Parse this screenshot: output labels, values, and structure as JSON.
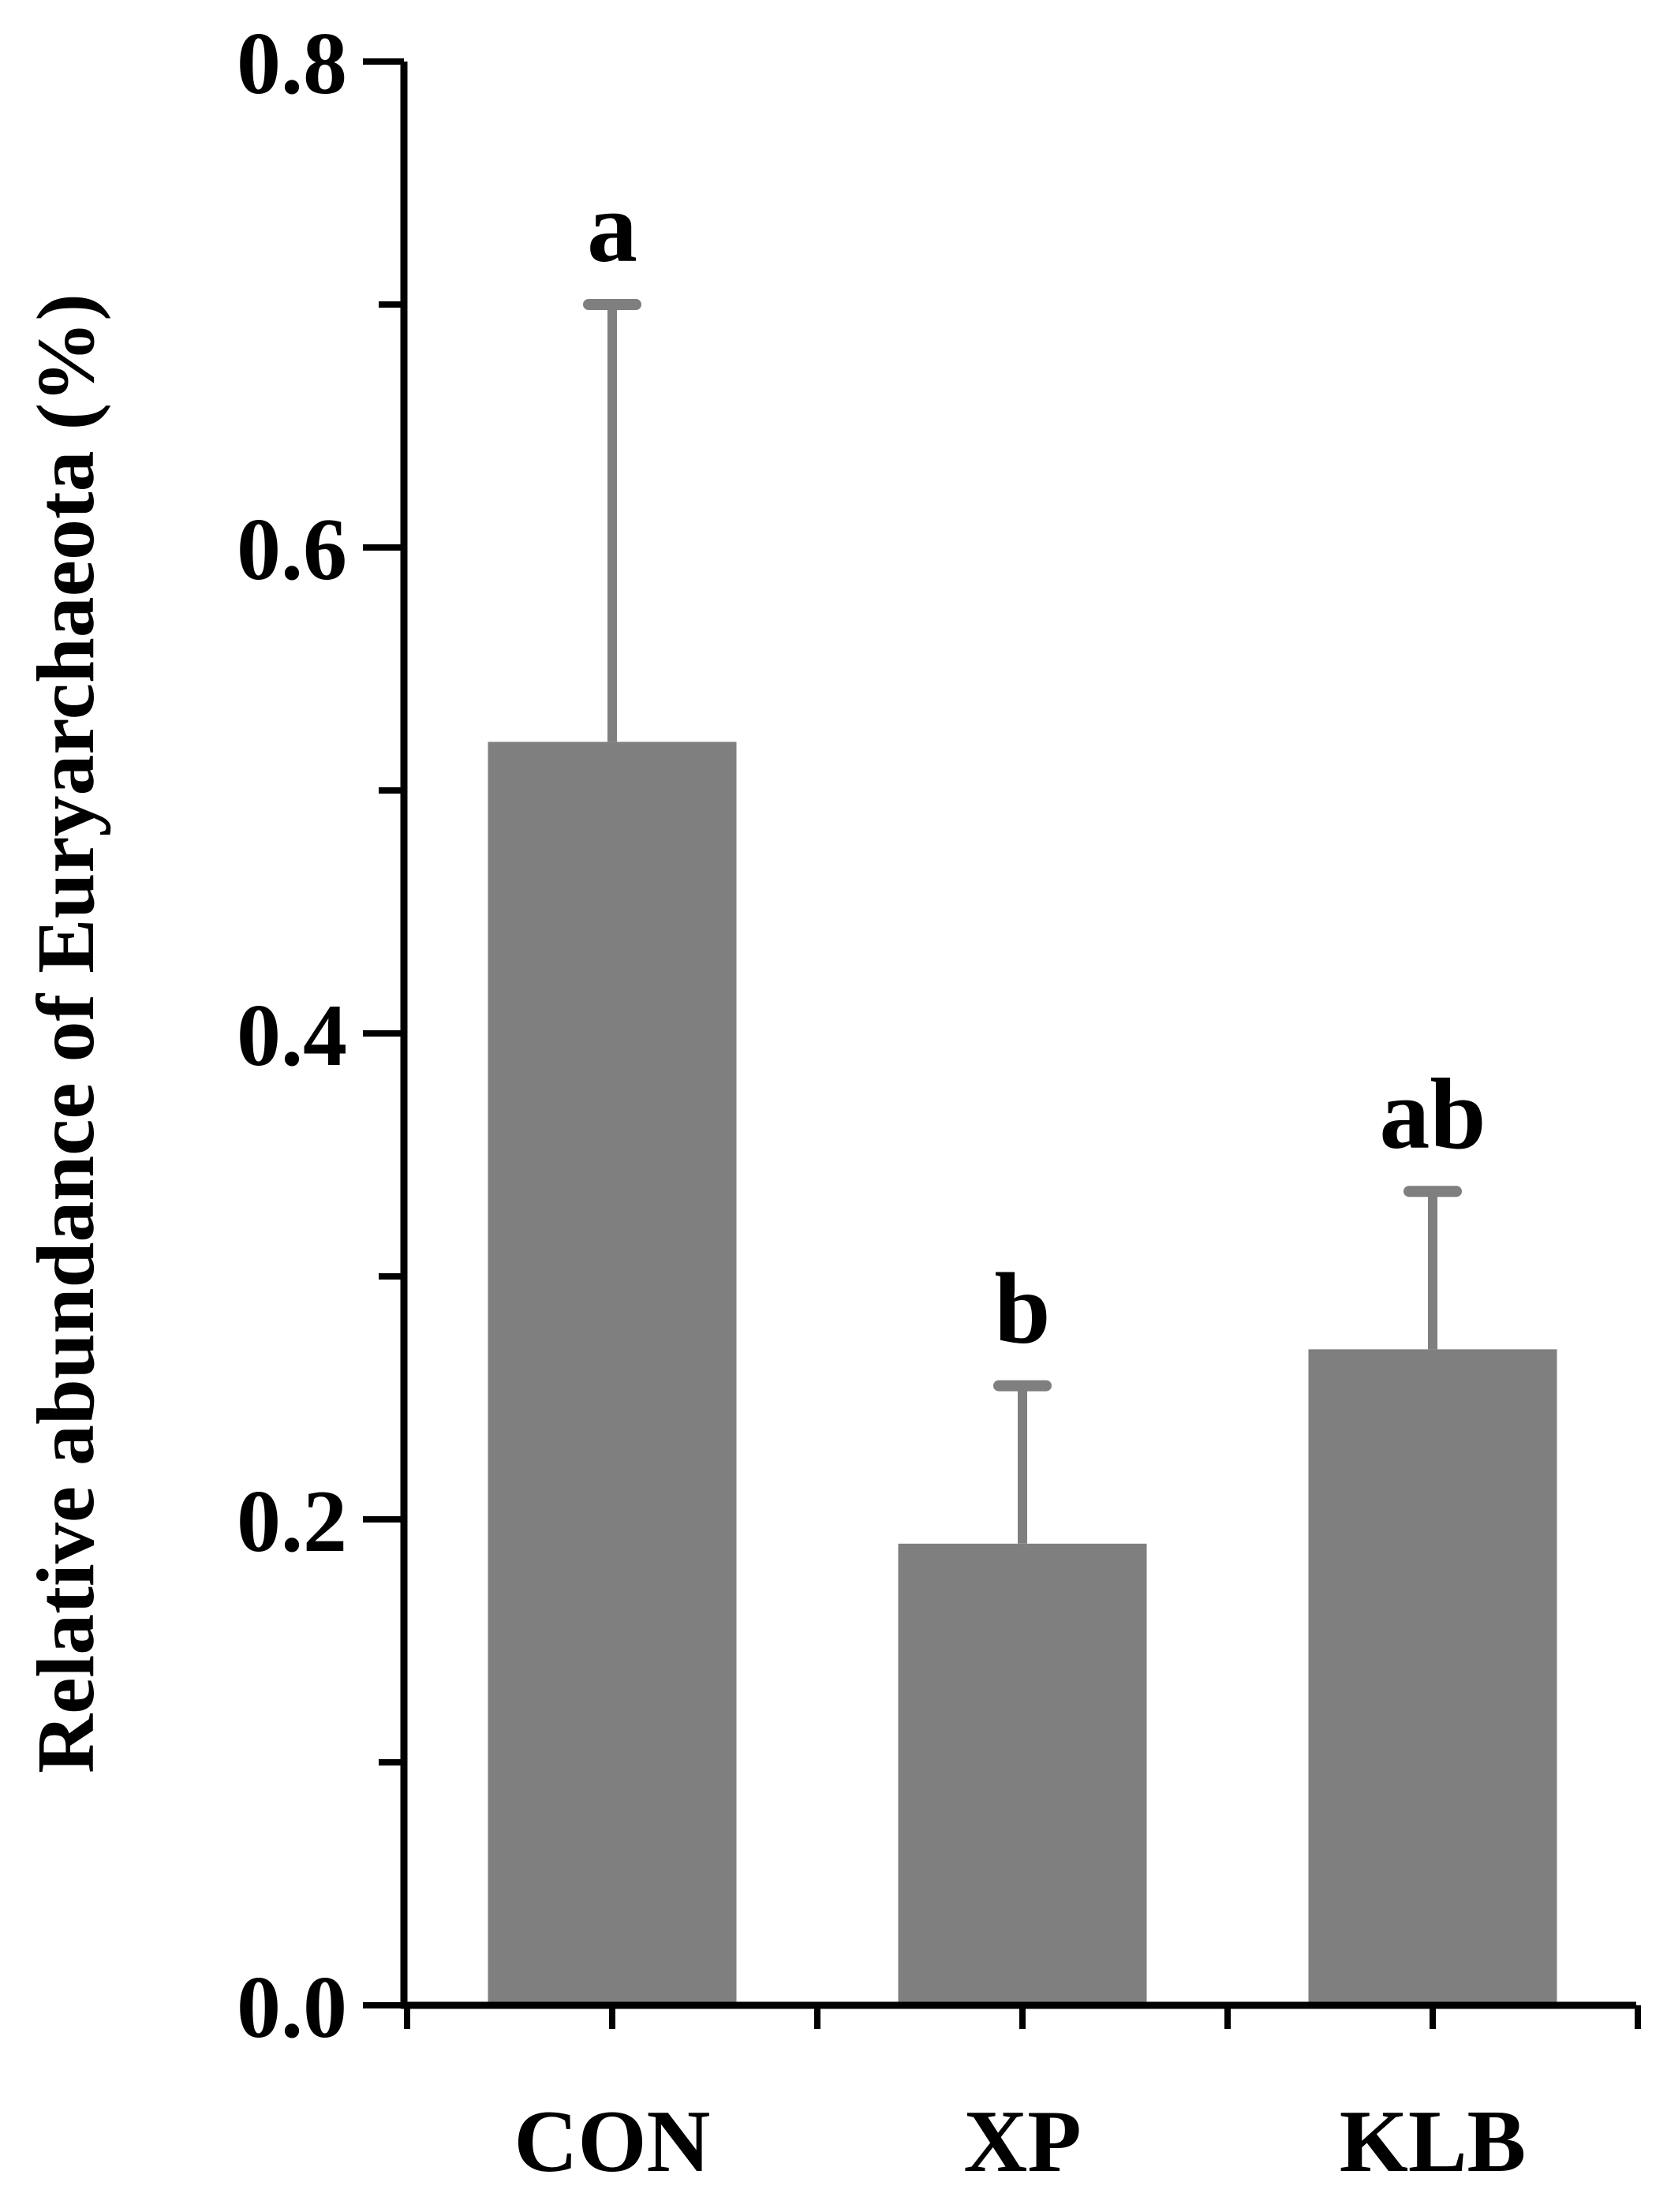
{
  "chart_data": {
    "type": "bar",
    "title": "",
    "xlabel": "",
    "ylabel": "Relative abundance of Euryarchaeota (%)",
    "categories": [
      "CON",
      "XP",
      "KLB"
    ],
    "values": [
      0.52,
      0.19,
      0.27
    ],
    "error_upper": [
      0.7,
      0.255,
      0.335
    ],
    "significance": [
      "a",
      "b",
      "ab"
    ],
    "ylim": [
      0,
      0.8
    ],
    "y_major_ticks": [
      0.0,
      0.2,
      0.4,
      0.6,
      0.8
    ],
    "y_tick_labels": [
      "0.0",
      "0.2",
      "0.4",
      "0.6",
      "0.8"
    ],
    "y_minor_ticks": [
      0.1,
      0.3,
      0.5,
      0.7
    ],
    "grid": false,
    "legend": "none",
    "bar_color": "#7f7f7f",
    "error_color": "#7f7f7f",
    "axis_color": "#000000"
  }
}
